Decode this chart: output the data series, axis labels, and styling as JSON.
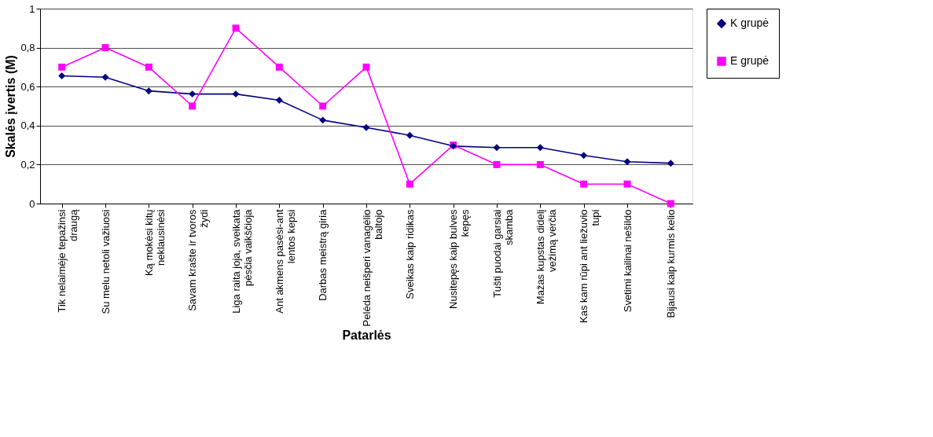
{
  "chart_data": {
    "type": "line",
    "xlabel": "Patarlės",
    "ylabel": "Skalės įvertis (M)",
    "categories": [
      "Tik nelaimėje tepažinsi draugą",
      "Su melu netoli važiuosi",
      "Ką mokėsi kitų neklausinėsi",
      "Savam krašte ir tvoros žydi",
      "Liga raita joja, sveikata pėsčia vaikščioja",
      "Ant akmens pasėsi-ant lentos kepsi",
      "Darbas meistrą giria",
      "Pelėda neišperi vanagėlio baltojo",
      "Sveikas kaip ridikas",
      "Nusitepęs kaip bulves kepęs",
      "Tušti puodai garsiai skamba",
      "Mažas kupstas didelį vežimą verčia",
      "Kas kam rūpi ant liežuvio tupi",
      "Svetimi kailinai nešildo",
      "Bijausi kaip kurmis kelio"
    ],
    "series": [
      {
        "name": "K grupė",
        "color": "#000080",
        "marker": "diamond",
        "values": [
          0.655,
          0.648,
          0.578,
          0.562,
          0.562,
          0.53,
          0.428,
          0.39,
          0.35,
          0.295,
          0.287,
          0.287,
          0.247,
          0.215,
          0.207
        ]
      },
      {
        "name": "E grupė",
        "color": "#ff00ff",
        "marker": "square",
        "values": [
          0.7,
          0.8,
          0.7,
          0.5,
          0.9,
          0.7,
          0.5,
          0.7,
          0.1,
          0.3,
          0.2,
          0.2,
          0.1,
          0.1,
          0.0
        ]
      }
    ],
    "ylim": [
      0,
      1
    ],
    "yticks": [
      0,
      {
        "value": 0.2,
        "label": "0,2"
      },
      {
        "value": 0.4,
        "label": "0,4"
      },
      {
        "value": 0.6,
        "label": "0,6"
      },
      {
        "value": 0.8,
        "label": "0,8"
      },
      1
    ],
    "grid": "y",
    "legend": "right",
    "line_style": "solid"
  }
}
